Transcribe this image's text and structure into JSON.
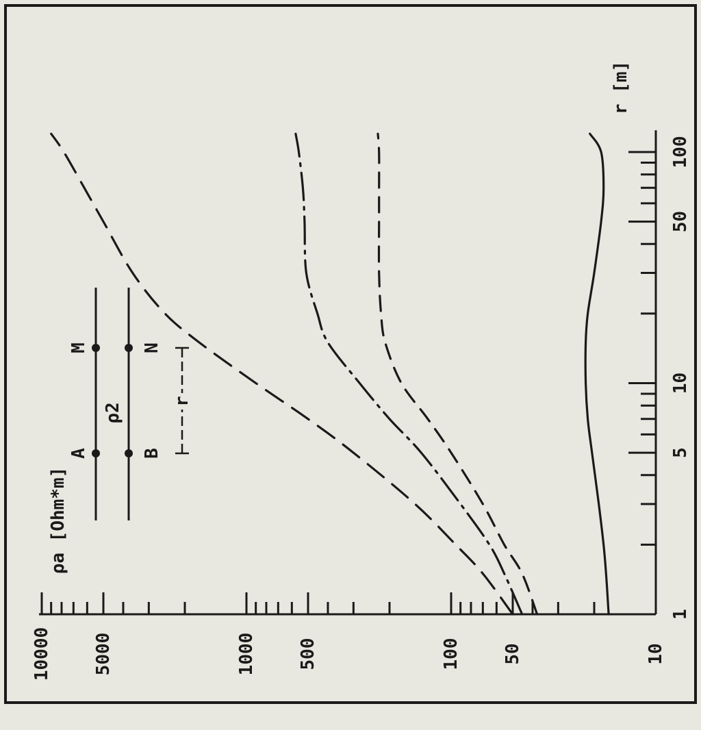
{
  "chart_data": {
    "type": "line",
    "orientation": "rotated 90° clockwise on the page (x axis runs top to bottom, y axis right to left)",
    "x_scale": "log",
    "y_scale": "log",
    "xlim": [
      1,
      120
    ],
    "ylim": [
      10,
      10000
    ],
    "xlabel": "r [m]",
    "ylabel": "ρa [Ohm*m]",
    "x_ticks": [
      "1",
      "5",
      "10",
      "50",
      "100"
    ],
    "y_ticks": [
      "10",
      "50",
      "100",
      "500",
      "1000",
      "5000",
      "10000"
    ],
    "grid": false,
    "series": [
      {
        "style": "long dash",
        "x": [
          1,
          1.5,
          2,
          3,
          5,
          7,
          10,
          15,
          20,
          30,
          50,
          70,
          100,
          120
        ],
        "y": [
          50,
          70,
          95,
          150,
          300,
          500,
          900,
          1700,
          2500,
          3600,
          5000,
          6200,
          7800,
          9000
        ]
      },
      {
        "style": "dash-dot",
        "x": [
          1,
          1.5,
          2,
          3,
          5,
          7,
          10,
          15,
          20,
          30,
          50,
          70,
          100,
          120
        ],
        "y": [
          45,
          55,
          65,
          90,
          140,
          200,
          280,
          400,
          450,
          510,
          520,
          530,
          555,
          575
        ]
      },
      {
        "style": "dashed",
        "x": [
          1,
          1.5,
          2,
          3,
          5,
          7,
          10,
          15,
          20,
          30,
          50,
          70,
          100,
          120
        ],
        "y": [
          38,
          45,
          55,
          70,
          100,
          130,
          175,
          210,
          220,
          225,
          225,
          225,
          225,
          228
        ]
      },
      {
        "style": "solid",
        "x": [
          1,
          1.5,
          2,
          3,
          5,
          7,
          10,
          15,
          20,
          30,
          50,
          70,
          100,
          120
        ],
        "y": [
          17,
          17.5,
          18,
          19,
          20.5,
          21.5,
          22,
          22,
          21.5,
          20,
          18.5,
          18,
          18.5,
          21
        ]
      }
    ],
    "inset": {
      "electrodes_top": [
        "A",
        "M"
      ],
      "electrodes_bottom": [
        "B",
        "N"
      ],
      "layer_label": "ρ2",
      "spacing_label": "r"
    }
  }
}
